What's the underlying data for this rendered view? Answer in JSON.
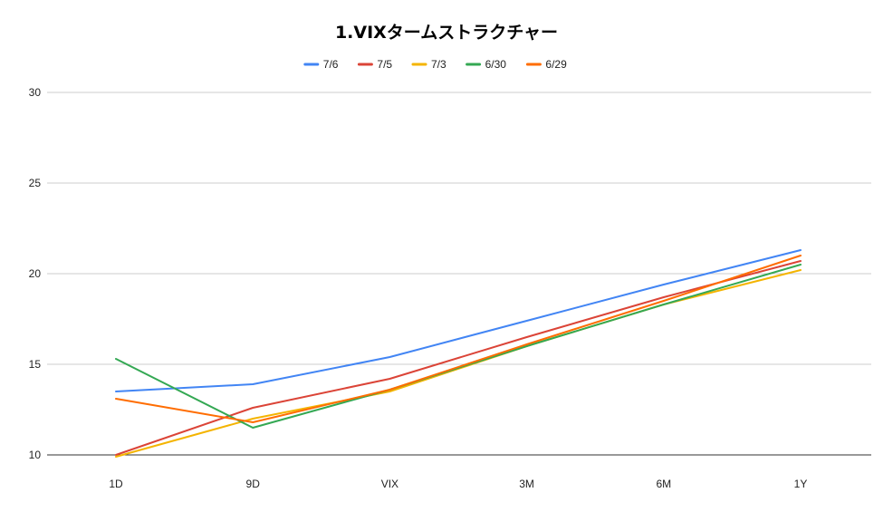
{
  "chart_data": {
    "type": "line",
    "title": "1.VIXタームストラクチャー",
    "xlabel": "",
    "ylabel": "",
    "categories": [
      "1D",
      "9D",
      "VIX",
      "3M",
      "6M",
      "1Y"
    ],
    "ylim": [
      10,
      30
    ],
    "yticks": [
      10,
      15,
      20,
      25,
      30
    ],
    "grid": true,
    "legend_position": "top",
    "series": [
      {
        "name": "7/6",
        "color": "#4285f4",
        "values": [
          13.5,
          13.9,
          15.4,
          17.4,
          19.4,
          21.3
        ]
      },
      {
        "name": "7/5",
        "color": "#db4437",
        "values": [
          10.0,
          12.6,
          14.2,
          16.5,
          18.7,
          20.7
        ]
      },
      {
        "name": "7/3",
        "color": "#f4b400",
        "values": [
          9.9,
          12.0,
          13.5,
          16.0,
          18.3,
          20.2
        ]
      },
      {
        "name": "6/30",
        "color": "#34a853",
        "values": [
          15.3,
          11.5,
          13.6,
          16.0,
          18.3,
          20.5
        ]
      },
      {
        "name": "6/29",
        "color": "#ff6d01",
        "values": [
          13.1,
          11.8,
          13.6,
          16.1,
          18.5,
          21.0
        ]
      }
    ]
  }
}
